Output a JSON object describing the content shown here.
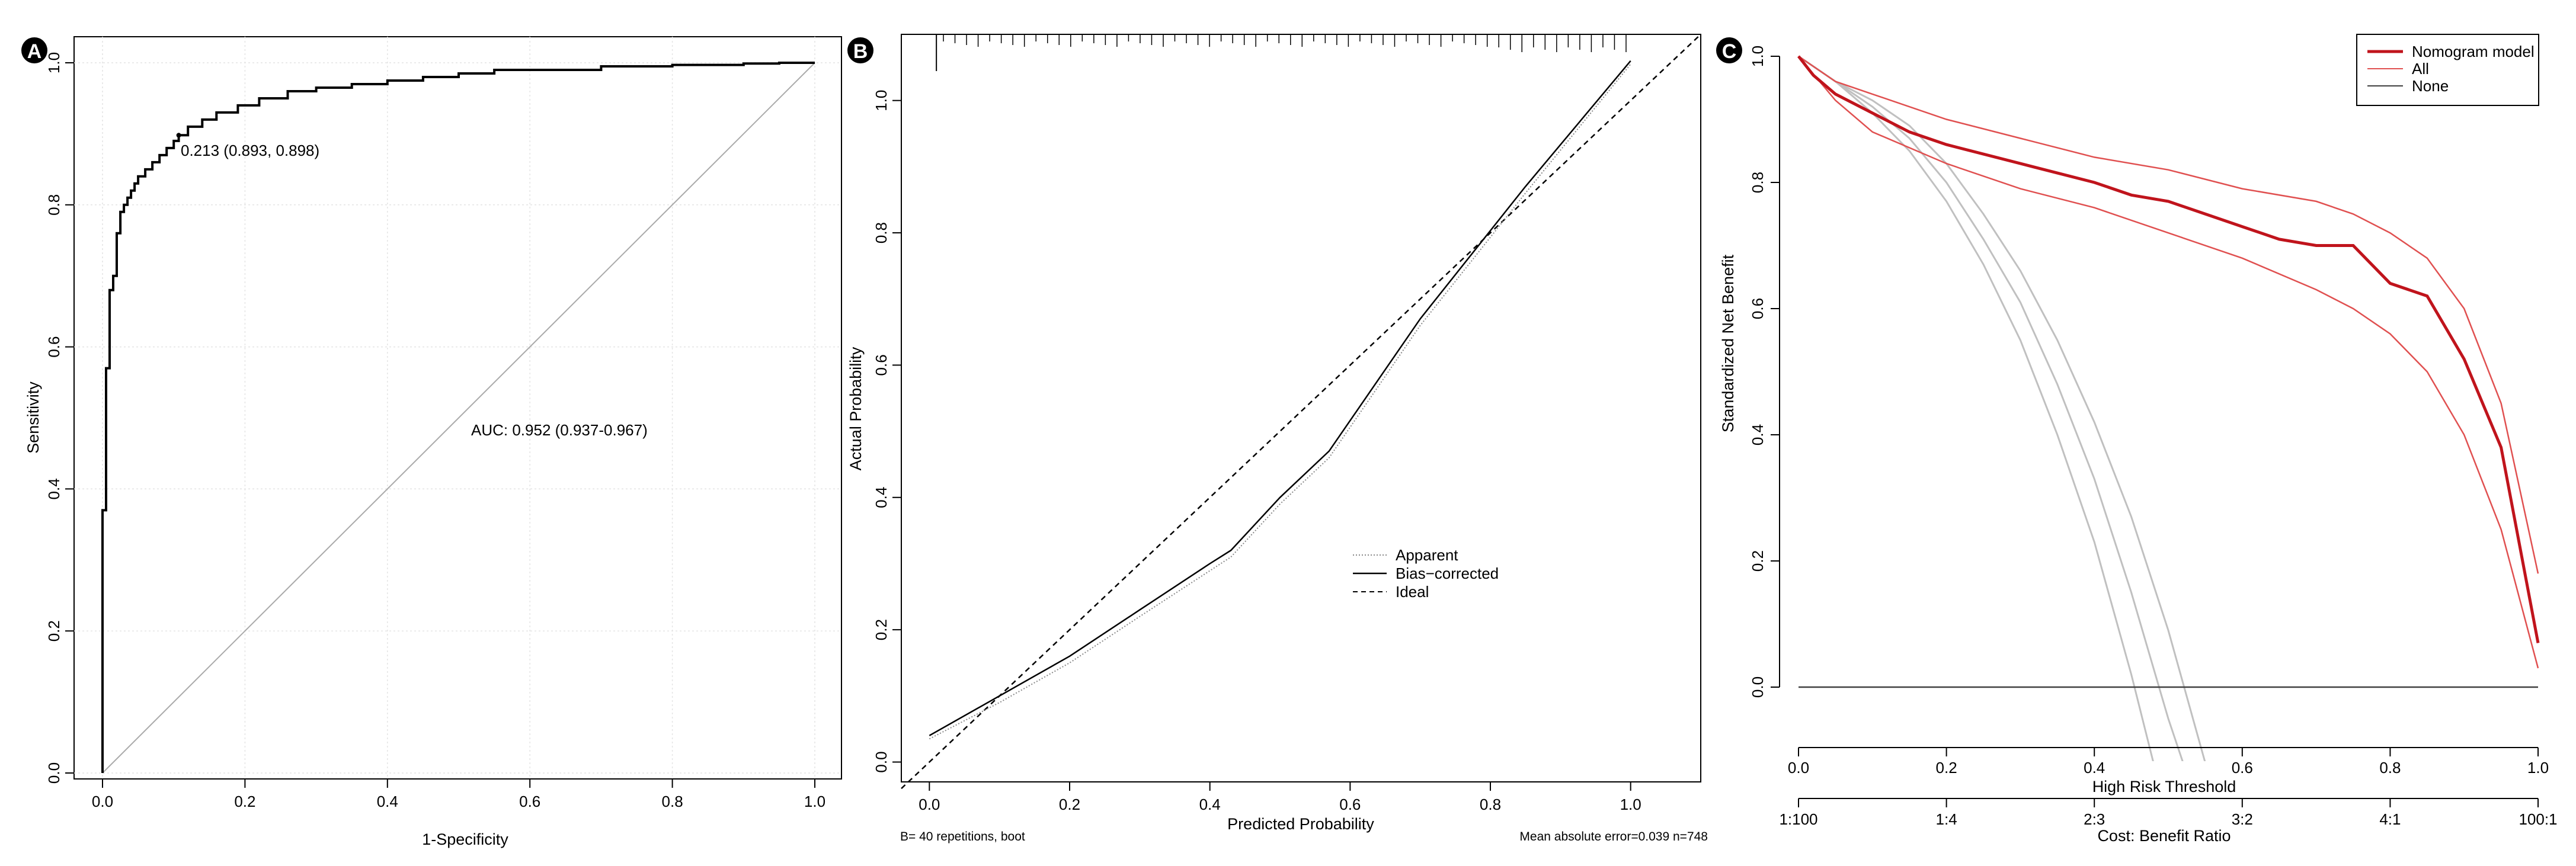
{
  "chart_data": [
    {
      "panel_label": "A",
      "type": "line",
      "xlabel": "1-Specificity",
      "ylabel": "Sensitivity",
      "xlim": [
        0,
        1
      ],
      "ylim": [
        0,
        1
      ],
      "xticks": [
        "0.0",
        "0.2",
        "0.4",
        "0.6",
        "0.8",
        "1.0"
      ],
      "yticks": [
        "0.0",
        "0.2",
        "0.4",
        "0.6",
        "0.8",
        "1.0"
      ],
      "annotations": [
        "0.213 (0.893, 0.898)",
        "AUC: 0.952 (0.937-0.967)"
      ],
      "series": [
        {
          "x": [
            0,
            0,
            0.005,
            0.005,
            0.01,
            0.01,
            0.015,
            0.02,
            0.02,
            0.025,
            0.03,
            0.035,
            0.04,
            0.045,
            0.05,
            0.06,
            0.07,
            0.08,
            0.09,
            0.1,
            0.107,
            0.12,
            0.14,
            0.16,
            0.19,
            0.22,
            0.26,
            0.3,
            0.35,
            0.4,
            0.45,
            0.5,
            0.55,
            0.6,
            0.7,
            0.8,
            0.9,
            0.95,
            1.0
          ],
          "y": [
            0,
            0.37,
            0.42,
            0.57,
            0.6,
            0.68,
            0.7,
            0.73,
            0.76,
            0.79,
            0.8,
            0.81,
            0.82,
            0.83,
            0.84,
            0.85,
            0.86,
            0.87,
            0.88,
            0.89,
            0.898,
            0.91,
            0.92,
            0.93,
            0.94,
            0.95,
            0.96,
            0.965,
            0.97,
            0.975,
            0.98,
            0.985,
            0.99,
            0.99,
            0.995,
            0.997,
            0.999,
            1.0,
            1.0
          ]
        },
        {
          "x": [
            0,
            1
          ],
          "y": [
            0,
            1
          ]
        }
      ]
    },
    {
      "panel_label": "B",
      "type": "line",
      "xlabel": "Predicted Probability",
      "ylabel": "Actual Probability",
      "xlim": [
        -0.04,
        1.1
      ],
      "ylim": [
        -0.03,
        1.1
      ],
      "xticks": [
        "0.0",
        "0.2",
        "0.4",
        "0.6",
        "0.8",
        "1.0"
      ],
      "yticks": [
        "0.0",
        "0.2",
        "0.4",
        "0.6",
        "0.8",
        "1.0"
      ],
      "legend": [
        "Apparent",
        "Bias−corrected",
        "Ideal"
      ],
      "footnotes": [
        "B= 40 repetitions, boot",
        "Mean absolute error=0.039 n=748"
      ],
      "series": [
        {
          "name": "Apparent",
          "x": [
            0,
            0.1,
            0.2,
            0.3,
            0.43,
            0.5,
            0.57,
            0.7,
            0.85,
            1.0
          ],
          "y": [
            0.035,
            0.09,
            0.15,
            0.22,
            0.31,
            0.39,
            0.46,
            0.66,
            0.86,
            1.055
          ]
        },
        {
          "name": "Bias−corrected",
          "x": [
            0,
            0.1,
            0.2,
            0.3,
            0.4,
            0.43,
            0.5,
            0.57,
            0.7,
            0.85,
            1.0
          ],
          "y": [
            0.04,
            0.1,
            0.16,
            0.23,
            0.3,
            0.32,
            0.4,
            0.47,
            0.67,
            0.87,
            1.06
          ]
        },
        {
          "name": "Ideal",
          "x": [
            -0.04,
            1.1
          ],
          "y": [
            -0.04,
            1.1
          ]
        }
      ]
    },
    {
      "panel_label": "C",
      "type": "line",
      "xlabel": "High Risk Threshold",
      "ylabel": "Standardized Net Benefit",
      "x2label": "Cost: Benefit Ratio",
      "xlim": [
        0,
        1
      ],
      "ylim": [
        0,
        1
      ],
      "xticks": [
        "0.0",
        "0.2",
        "0.4",
        "0.6",
        "0.8",
        "1.0"
      ],
      "x2ticks": [
        "1:100",
        "1:4",
        "2:3",
        "3:2",
        "4:1",
        "100:1"
      ],
      "yticks": [
        "0.0",
        "0.2",
        "0.4",
        "0.6",
        "0.8",
        "1.0"
      ],
      "legend": [
        "Nomogram model",
        "All",
        "None"
      ],
      "colors": {
        "nomogram": "#c0141c",
        "ci": "#e05050",
        "all": "#c0c0c0",
        "none": "#404040"
      },
      "series": [
        {
          "name": "Nomogram model",
          "x": [
            0,
            0.02,
            0.05,
            0.1,
            0.15,
            0.2,
            0.3,
            0.4,
            0.45,
            0.5,
            0.55,
            0.6,
            0.65,
            0.7,
            0.75,
            0.8,
            0.85,
            0.9,
            0.95,
            1.0
          ],
          "y": [
            1.0,
            0.97,
            0.94,
            0.91,
            0.88,
            0.86,
            0.83,
            0.8,
            0.78,
            0.77,
            0.75,
            0.73,
            0.71,
            0.7,
            0.7,
            0.64,
            0.62,
            0.52,
            0.38,
            0.07
          ]
        },
        {
          "x": [
            0,
            0.05,
            0.1,
            0.2,
            0.3,
            0.4,
            0.5,
            0.6,
            0.7,
            0.75,
            0.8,
            0.85,
            0.9,
            0.95,
            1.0
          ],
          "y": [
            1.0,
            0.96,
            0.94,
            0.9,
            0.87,
            0.84,
            0.82,
            0.79,
            0.77,
            0.75,
            0.72,
            0.68,
            0.6,
            0.45,
            0.18
          ]
        },
        {
          "x": [
            0,
            0.05,
            0.1,
            0.2,
            0.3,
            0.4,
            0.5,
            0.6,
            0.7,
            0.75,
            0.8,
            0.85,
            0.9,
            0.95,
            1.0
          ],
          "y": [
            1.0,
            0.93,
            0.88,
            0.83,
            0.79,
            0.76,
            0.72,
            0.68,
            0.63,
            0.6,
            0.56,
            0.5,
            0.4,
            0.25,
            0.03
          ]
        },
        {
          "name": "All",
          "x": [
            0,
            0.05,
            0.1,
            0.15,
            0.2,
            0.25,
            0.3,
            0.35,
            0.4,
            0.45,
            0.48
          ],
          "y": [
            1.0,
            0.96,
            0.91,
            0.85,
            0.77,
            0.67,
            0.55,
            0.4,
            0.23,
            0.02,
            -0.12
          ]
        },
        {
          "x": [
            0,
            0.05,
            0.1,
            0.15,
            0.2,
            0.25,
            0.3,
            0.35,
            0.4,
            0.45,
            0.5,
            0.52
          ],
          "y": [
            1.0,
            0.96,
            0.92,
            0.87,
            0.8,
            0.71,
            0.61,
            0.48,
            0.33,
            0.15,
            -0.05,
            -0.12
          ]
        },
        {
          "x": [
            0,
            0.05,
            0.1,
            0.15,
            0.2,
            0.25,
            0.3,
            0.35,
            0.4,
            0.45,
            0.5,
            0.55
          ],
          "y": [
            1.0,
            0.96,
            0.93,
            0.89,
            0.83,
            0.75,
            0.66,
            0.55,
            0.42,
            0.27,
            0.09,
            -0.12
          ]
        },
        {
          "name": "None",
          "x": [
            0,
            1
          ],
          "y": [
            0,
            0
          ]
        }
      ]
    }
  ]
}
